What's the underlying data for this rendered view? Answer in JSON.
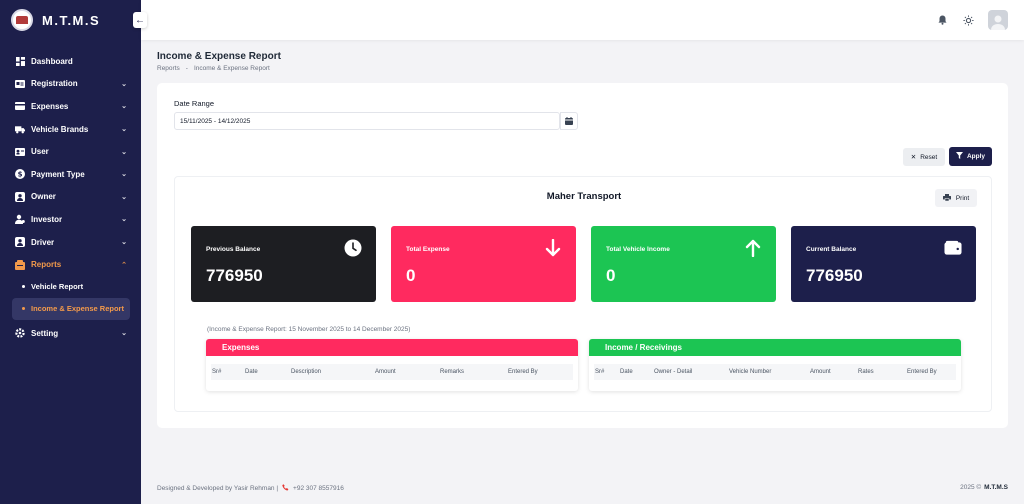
{
  "app": {
    "name": "M.T.M.S"
  },
  "sidebar": {
    "items": [
      {
        "label": "Dashboard",
        "icon": "dashboard-icon",
        "chevron": ""
      },
      {
        "label": "Registration",
        "icon": "registration-icon",
        "chevron": "⌄"
      },
      {
        "label": "Expenses",
        "icon": "expenses-icon",
        "chevron": "⌄"
      },
      {
        "label": "Vehicle Brands",
        "icon": "truck-icon",
        "chevron": "⌄"
      },
      {
        "label": "User",
        "icon": "user-card-icon",
        "chevron": "⌄"
      },
      {
        "label": "Payment Type",
        "icon": "dollar-icon",
        "chevron": "⌄"
      },
      {
        "label": "Owner",
        "icon": "owner-icon",
        "chevron": "⌄"
      },
      {
        "label": "Investor",
        "icon": "investor-icon",
        "chevron": "⌄"
      },
      {
        "label": "Driver",
        "icon": "driver-icon",
        "chevron": "⌄"
      },
      {
        "label": "Reports",
        "icon": "reports-icon",
        "chevron": "⌃"
      }
    ],
    "sub_items": [
      {
        "label": "Vehicle Report"
      },
      {
        "label": "Income & Expense Report"
      }
    ],
    "setting": {
      "label": "Setting",
      "chevron": "⌄"
    }
  },
  "header": {
    "title": "Income & Expense Report",
    "breadcrumb": [
      "Reports",
      "-",
      "Income & Expense Report"
    ]
  },
  "filters": {
    "date_label": "Date Range",
    "date_value": "15/11/2025 - 14/12/2025",
    "reset_label": "Reset",
    "apply_label": "Apply"
  },
  "report": {
    "company": "Maher Transport",
    "print_label": "Print",
    "range_text": "(Income & Expense Report: 15 November 2025 to 14 December 2025)"
  },
  "stats": [
    {
      "label": "Previous Balance",
      "value": "776950",
      "color": "#1d1e22",
      "icon": "clock-icon"
    },
    {
      "label": "Total Expense",
      "value": "0",
      "color": "#ff2a5f",
      "icon": "arrow-down-icon"
    },
    {
      "label": "Total Vehicle Income",
      "value": "0",
      "color": "#1cc553",
      "icon": "arrow-up-icon"
    },
    {
      "label": "Current Balance",
      "value": "776950",
      "color": "#1d1f4b",
      "icon": "wallet-icon"
    }
  ],
  "tables": {
    "expenses": {
      "title": "Expenses",
      "color": "#ff2a5f",
      "columns": [
        "Sr#",
        "Date",
        "Description",
        "Amount",
        "Remarks",
        "Entered By"
      ]
    },
    "income": {
      "title": "Income / Receivings",
      "color": "#1cc553",
      "columns": [
        "Sr#",
        "Date",
        "Owner - Detail",
        "Vehicle Number",
        "Amount",
        "Rates",
        "Entered By"
      ]
    }
  },
  "footer": {
    "designed_by": "Designed & Developed by Yasir Rehman |",
    "phone": "+92 307 8557916",
    "copyright": "2025 ©",
    "brand": "M.T.M.S"
  },
  "colors": {
    "accent": "#f39a4b",
    "sidebar": "#1d1f4b"
  }
}
